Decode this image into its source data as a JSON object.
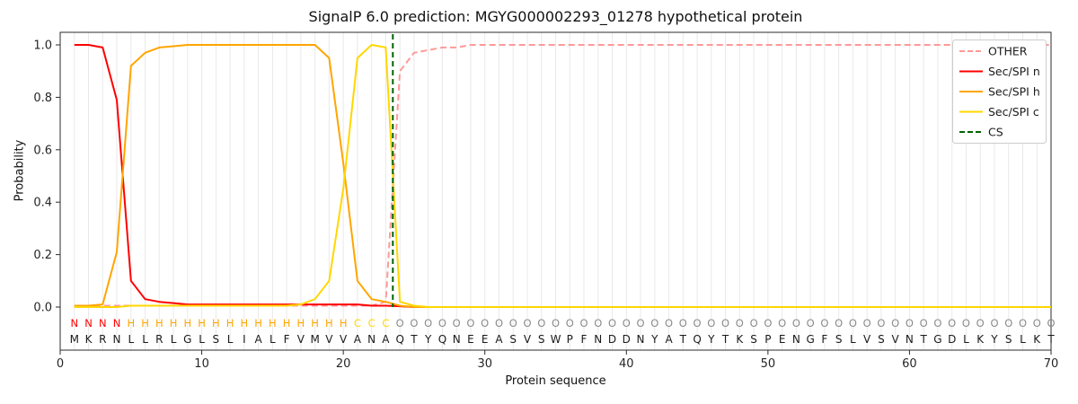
{
  "title": "SignalP 6.0 prediction: MGYG000002293_01278 hypothetical protein",
  "chart_data": {
    "type": "line",
    "title": "SignalP 6.0 prediction: MGYG000002293_01278 hypothetical protein",
    "xlabel": "Protein sequence",
    "ylabel": "Probability",
    "xlim": [
      0,
      70
    ],
    "ylim": [
      -0.16,
      1.05
    ],
    "xticks": [
      0,
      10,
      20,
      30,
      40,
      50,
      60,
      70
    ],
    "yticks": [
      0.0,
      0.2,
      0.4,
      0.6,
      0.8,
      1.0
    ],
    "grid": "vertical-per-residue",
    "legend_position": "upper-right",
    "sequence": "MKRNLLRLGLSLIALFVMVVANAQTYQNEEASVSWPFNDDNYATQYTKSPENGFSLVSVNTGDLKYSLKT",
    "states": "NNNNHHHHHHHHHHHHHHHHCCCOOOOOOOOOOOOOOOOOOOOOOOOOOOOOOOOOOOOOOOOOOOOOOO",
    "cs": {
      "label": "CS",
      "position": 23.5,
      "color": "#006400"
    },
    "series": [
      {
        "name": "OTHER",
        "color": "#ff9999",
        "style": "dashed",
        "values": [
          0.005,
          0.005,
          0.005,
          0.005,
          0.005,
          0.005,
          0.005,
          0.005,
          0.005,
          0.005,
          0.005,
          0.005,
          0.005,
          0.005,
          0.005,
          0.005,
          0.005,
          0.005,
          0.005,
          0.005,
          0.005,
          0.005,
          0.02,
          0.9,
          0.97,
          0.98,
          0.99,
          0.99,
          1,
          1,
          1,
          1,
          1,
          1,
          1,
          1,
          1,
          1,
          1,
          1,
          1,
          1,
          1,
          1,
          1,
          1,
          1,
          1,
          1,
          1,
          1,
          1,
          1,
          1,
          1,
          1,
          1,
          1,
          1,
          1,
          1,
          1,
          1,
          1,
          1,
          1,
          1,
          1,
          1,
          1
        ]
      },
      {
        "name": "Sec/SPI n",
        "color": "#ff0000",
        "style": "solid",
        "values": [
          1,
          1,
          0.99,
          0.79,
          0.1,
          0.03,
          0.02,
          0.015,
          0.01,
          0.01,
          0.01,
          0.01,
          0.01,
          0.01,
          0.01,
          0.01,
          0.01,
          0.01,
          0.01,
          0.01,
          0.01,
          0.005,
          0.005,
          0.003,
          0,
          0,
          0,
          0,
          0,
          0,
          0,
          0,
          0,
          0,
          0,
          0,
          0,
          0,
          0,
          0,
          0,
          0,
          0,
          0,
          0,
          0,
          0,
          0,
          0,
          0,
          0,
          0,
          0,
          0,
          0,
          0,
          0,
          0,
          0,
          0,
          0,
          0,
          0,
          0,
          0,
          0,
          0,
          0,
          0,
          0
        ]
      },
      {
        "name": "Sec/SPI h",
        "color": "#ffa500",
        "style": "solid",
        "values": [
          0.005,
          0.005,
          0.01,
          0.21,
          0.92,
          0.97,
          0.99,
          0.995,
          1,
          1,
          1,
          1,
          1,
          1,
          1,
          1,
          1,
          1,
          0.95,
          0.55,
          0.1,
          0.03,
          0.02,
          0.005,
          0,
          0,
          0,
          0,
          0,
          0,
          0,
          0,
          0,
          0,
          0,
          0,
          0,
          0,
          0,
          0,
          0,
          0,
          0,
          0,
          0,
          0,
          0,
          0,
          0,
          0,
          0,
          0,
          0,
          0,
          0,
          0,
          0,
          0,
          0,
          0,
          0,
          0,
          0,
          0,
          0,
          0,
          0,
          0,
          0,
          0
        ]
      },
      {
        "name": "Sec/SPI c",
        "color": "#ffd700",
        "style": "solid",
        "values": [
          0,
          0,
          0,
          0,
          0.005,
          0.005,
          0.005,
          0.005,
          0.005,
          0.005,
          0.005,
          0.005,
          0.005,
          0.005,
          0.005,
          0.005,
          0.01,
          0.03,
          0.1,
          0.45,
          0.95,
          1,
          0.99,
          0.02,
          0.005,
          0,
          0,
          0,
          0,
          0,
          0,
          0,
          0,
          0,
          0,
          0,
          0,
          0,
          0,
          0,
          0,
          0,
          0,
          0,
          0,
          0,
          0,
          0,
          0,
          0,
          0,
          0,
          0,
          0,
          0,
          0,
          0,
          0,
          0,
          0,
          0,
          0,
          0,
          0,
          0,
          0,
          0,
          0,
          0,
          0
        ]
      }
    ]
  },
  "legend": {
    "items": [
      {
        "label": "OTHER",
        "color": "#ff9999",
        "style": "dashed"
      },
      {
        "label": "Sec/SPI n",
        "color": "#ff0000",
        "style": "solid"
      },
      {
        "label": "Sec/SPI h",
        "color": "#ffa500",
        "style": "solid"
      },
      {
        "label": "Sec/SPI c",
        "color": "#ffd700",
        "style": "solid"
      },
      {
        "label": "CS",
        "color": "#006400",
        "style": "dashed"
      }
    ]
  },
  "state_colors": {
    "N": "#ff0000",
    "H": "#ffa500",
    "C": "#ffd700",
    "O": "#8a8a8a"
  }
}
